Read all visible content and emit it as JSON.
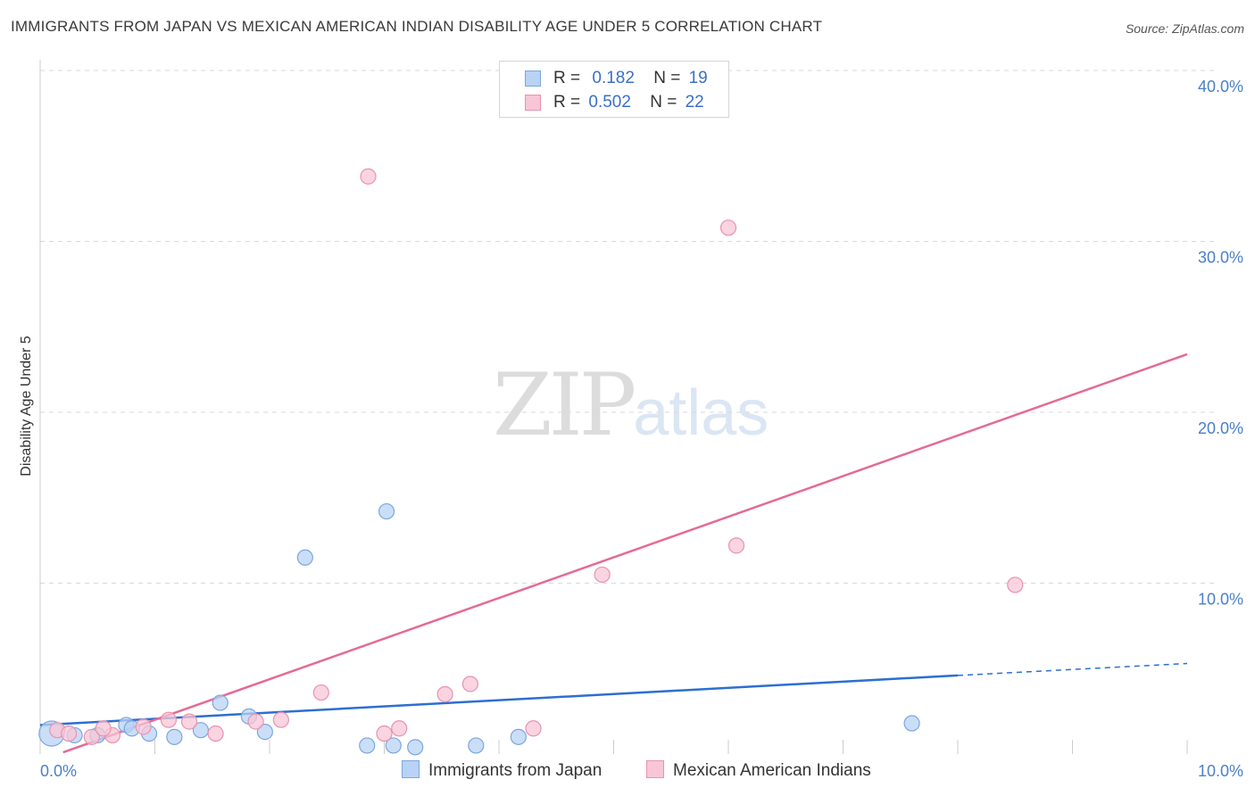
{
  "title": "IMMIGRANTS FROM JAPAN VS MEXICAN AMERICAN INDIAN DISABILITY AGE UNDER 5 CORRELATION CHART",
  "source": "Source: ZipAtlas.com",
  "watermark": {
    "zip": "ZIP",
    "atlas": "atlas"
  },
  "legend": {
    "r_label": "R =",
    "n_label": "N =",
    "series": [
      {
        "r": "0.182",
        "n": "19"
      },
      {
        "r": "0.502",
        "n": "22"
      }
    ]
  },
  "chart_data": {
    "type": "scatter",
    "title": "IMMIGRANTS FROM JAPAN VS MEXICAN AMERICAN INDIAN DISABILITY AGE UNDER 5 CORRELATION CHART",
    "xlabel": "",
    "ylabel": "Disability Age Under 5",
    "xlim": [
      0,
      10
    ],
    "ylim": [
      0,
      40
    ],
    "x_ticks": [
      0,
      10
    ],
    "x_tick_labels": [
      "0.0%",
      "10.0%"
    ],
    "y_ticks": [
      10,
      20,
      30,
      40
    ],
    "y_tick_labels": [
      "10.0%",
      "20.0%",
      "30.0%",
      "40.0%"
    ],
    "colors": {
      "japan_fill": "#b8d3f5",
      "japan_stroke": "#7aa7e0",
      "japan_line": "#2c6fd1",
      "mexican_fill": "#f8c6d6",
      "mexican_stroke": "#e793b0",
      "mexican_line": "#e46a95",
      "grid": "#d8d8d8",
      "tick": "#4a7fc9"
    },
    "series": [
      {
        "name": "Immigrants from Japan",
        "color": "#b8d3f5",
        "x": [
          0.1,
          0.3,
          0.5,
          0.75,
          0.95,
          1.17,
          1.4,
          1.57,
          1.82,
          1.96,
          2.31,
          2.85,
          3.02,
          3.08,
          3.27,
          3.8,
          4.17,
          7.6,
          0.8
        ],
        "y": [
          1.2,
          1.1,
          1.1,
          1.7,
          1.2,
          1.0,
          1.4,
          3.0,
          2.2,
          1.3,
          11.5,
          0.5,
          14.2,
          0.5,
          0.4,
          0.5,
          1.0,
          1.8,
          1.5
        ],
        "fit": {
          "x0": 0,
          "y0": 1.7,
          "x1": 8.0,
          "y1": 4.6,
          "x_dash_end": 10,
          "y_dash_end": 5.3
        }
      },
      {
        "name": "Mexican American Indians",
        "color": "#f8c6d6",
        "x": [
          0.15,
          0.45,
          0.63,
          0.9,
          1.12,
          1.3,
          1.53,
          1.88,
          2.1,
          2.45,
          2.86,
          3.0,
          3.13,
          3.53,
          3.75,
          4.3,
          4.9,
          6.0,
          6.07,
          8.5,
          0.25,
          0.55
        ],
        "y": [
          1.4,
          1.0,
          1.1,
          1.6,
          2.0,
          1.9,
          1.2,
          1.9,
          2.0,
          3.6,
          33.8,
          1.2,
          1.5,
          3.5,
          4.1,
          1.5,
          10.5,
          30.8,
          12.2,
          9.9,
          1.2,
          1.5
        ],
        "fit": {
          "x0": 0.2,
          "y0": 0.1,
          "x1": 10,
          "y1": 23.4
        }
      }
    ]
  }
}
